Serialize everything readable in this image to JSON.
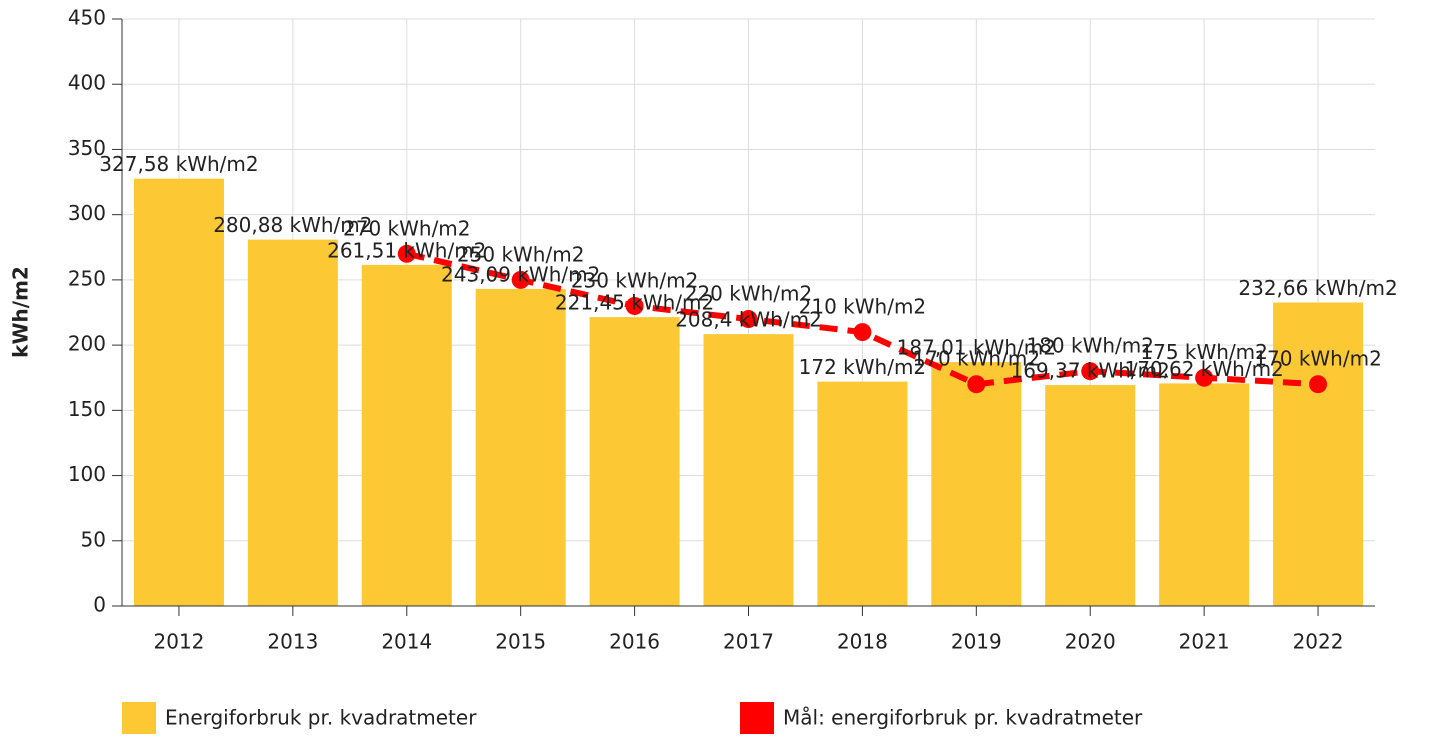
{
  "chart_data": {
    "type": "bar",
    "y_label": "kWh/m2",
    "categories": [
      "2012",
      "2013",
      "2014",
      "2015",
      "2016",
      "2017",
      "2018",
      "2019",
      "2020",
      "2021",
      "2022"
    ],
    "series": [
      {
        "name": "Energiforbruk pr. kvadratmeter",
        "type": "bar",
        "color": "#fcc934",
        "values": [
          327.58,
          280.88,
          261.51,
          243.09,
          221.45,
          208.4,
          172,
          187.01,
          169.37,
          170.62,
          232.66
        ],
        "value_labels": [
          "327,58 kWh/m2",
          "280,88 kWh/m2",
          "261,51 kWh/m2",
          "243,09 kWh/m2",
          "221,45 kWh/m2",
          "208,4 kWh/m2",
          "172 kWh/m2",
          "187,01 kWh/m2",
          "169,37 kWh/m2",
          "170,62 kWh/m2",
          "232,66 kWh/m2"
        ]
      },
      {
        "name": "Mål: energiforbruk pr. kvadratmeter",
        "type": "line",
        "color": "#ff0000",
        "values": [
          null,
          null,
          270,
          250,
          230,
          220,
          210,
          170,
          180,
          175,
          170
        ],
        "value_labels": [
          null,
          null,
          "270 kWh/m2",
          "250 kWh/m2",
          "230 kWh/m2",
          "220 kWh/m2",
          "210 kWh/m2",
          "170 kWh/m2",
          "180 kWh/m2",
          "175 kWh/m2",
          "170 kWh/m2"
        ]
      }
    ],
    "ylim": [
      0,
      450
    ],
    "yticks": [
      0,
      50,
      100,
      150,
      200,
      250,
      300,
      350,
      400,
      450
    ],
    "grid": true
  }
}
